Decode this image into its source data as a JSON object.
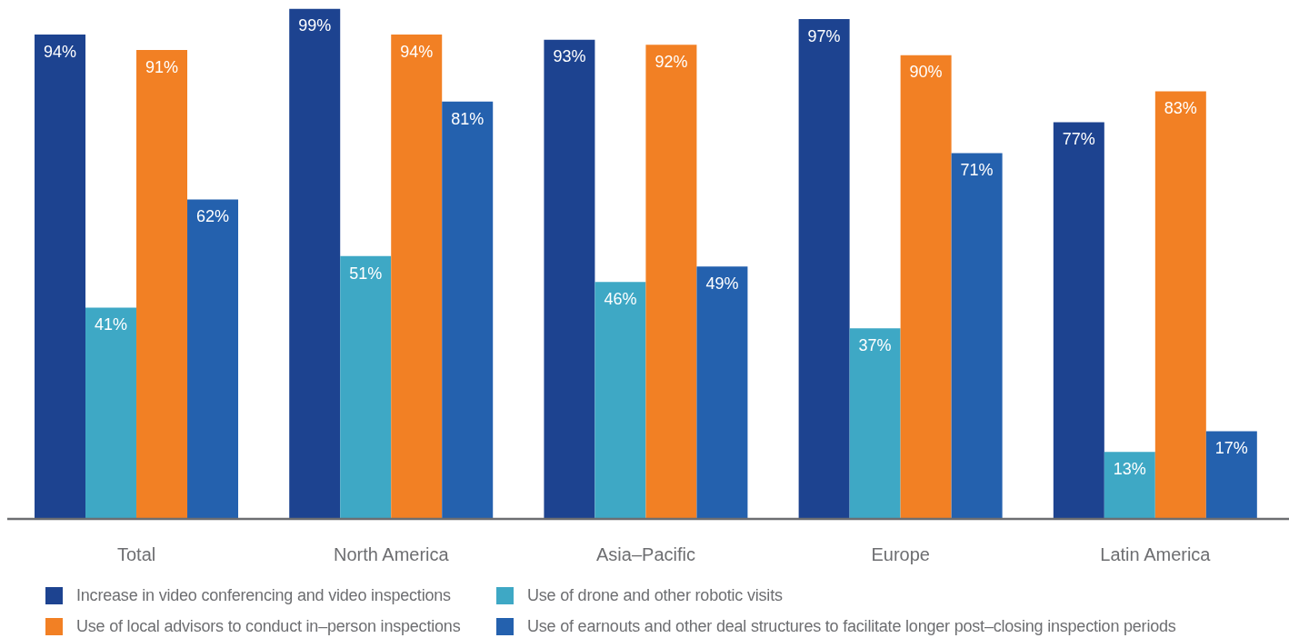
{
  "chart_data": {
    "type": "bar",
    "categories": [
      "Total",
      "North America",
      "Asia–Pacific",
      "Europe",
      "Latin America"
    ],
    "series": [
      {
        "name": "Increase in video conferencing and video inspections",
        "color": "#1d4390",
        "values": [
          94,
          99,
          93,
          97,
          77
        ],
        "value_labels": [
          "94%",
          "99%",
          "93%",
          "97%",
          "77%"
        ]
      },
      {
        "name": "Use of drone and other robotic visits",
        "color": "#3ea8c5",
        "values": [
          41,
          51,
          46,
          37,
          13
        ],
        "value_labels": [
          "41%",
          "51%",
          "46%",
          "37%",
          "13%"
        ]
      },
      {
        "name": "Use of local advisors to conduct in–person inspections",
        "color": "#f28024",
        "values": [
          91,
          94,
          92,
          90,
          83
        ],
        "value_labels": [
          "91%",
          "94%",
          "92%",
          "90%",
          "83%"
        ]
      },
      {
        "name": "Use of earnouts and other deal structures to facilitate longer post–closing inspection periods",
        "color": "#2461ae",
        "values": [
          62,
          81,
          49,
          71,
          17
        ],
        "value_labels": [
          "62%",
          "81%",
          "49%",
          "71%",
          "17%"
        ]
      }
    ],
    "ylim": [
      0,
      100
    ],
    "tick_labels": "x",
    "legend": "bottom"
  }
}
